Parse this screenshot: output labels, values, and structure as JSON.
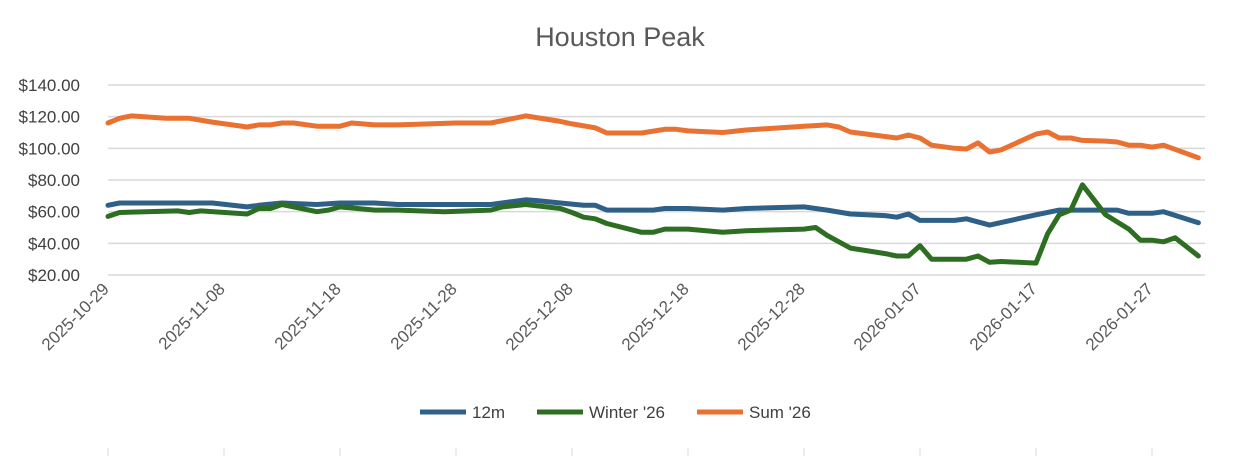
{
  "chart_data": {
    "type": "line",
    "title": "Houston Peak",
    "xlabel": "",
    "ylabel": "",
    "ylim": [
      20,
      140
    ],
    "yticks": [
      "$20.00",
      "$40.00",
      "$60.00",
      "$80.00",
      "$100.00",
      "$120.00",
      "$140.00"
    ],
    "ytick_values": [
      20,
      40,
      60,
      80,
      100,
      120,
      140
    ],
    "xlim": [
      "2025-10-29",
      "2026-01-31"
    ],
    "xticks": [
      "2025-10-29",
      "2025-11-08",
      "2025-11-18",
      "2025-11-28",
      "2025-12-08",
      "2025-12-18",
      "2025-12-28",
      "2026-01-07",
      "2026-01-17",
      "2026-01-27"
    ],
    "grid": true,
    "legend_position": "bottom",
    "series": [
      {
        "name": "12m",
        "color": "#2E6088",
        "points": [
          [
            "2025-10-29",
            64
          ],
          [
            "2025-10-30",
            65.5
          ],
          [
            "2025-11-07",
            65.5
          ],
          [
            "2025-11-10",
            63
          ],
          [
            "2025-11-11",
            64
          ],
          [
            "2025-11-13",
            65.5
          ],
          [
            "2025-11-16",
            64.5
          ],
          [
            "2025-11-18",
            65.5
          ],
          [
            "2025-11-21",
            65.5
          ],
          [
            "2025-11-23",
            64.5
          ],
          [
            "2025-12-01",
            64.5
          ],
          [
            "2025-12-03",
            66.5
          ],
          [
            "2025-12-04",
            67.5
          ],
          [
            "2025-12-05",
            67
          ],
          [
            "2025-12-07",
            65.5
          ],
          [
            "2025-12-09",
            64
          ],
          [
            "2025-12-10",
            64
          ],
          [
            "2025-12-11",
            61
          ],
          [
            "2025-12-15",
            61
          ],
          [
            "2025-12-16",
            62
          ],
          [
            "2025-12-18",
            62
          ],
          [
            "2025-12-21",
            61
          ],
          [
            "2025-12-23",
            62
          ],
          [
            "2025-12-28",
            63
          ],
          [
            "2025-12-30",
            61
          ],
          [
            "2026-01-01",
            58.5
          ],
          [
            "2026-01-04",
            57.5
          ],
          [
            "2026-01-05",
            56.5
          ],
          [
            "2026-01-06",
            58.5
          ],
          [
            "2026-01-07",
            54.5
          ],
          [
            "2026-01-10",
            54.5
          ],
          [
            "2026-01-11",
            55.5
          ],
          [
            "2026-01-13",
            51.5
          ],
          [
            "2026-01-17",
            58
          ],
          [
            "2026-01-19",
            61
          ],
          [
            "2026-01-23",
            61
          ],
          [
            "2026-01-24",
            61
          ],
          [
            "2026-01-25",
            59
          ],
          [
            "2026-01-27",
            59
          ],
          [
            "2026-01-28",
            60
          ],
          [
            "2026-01-31",
            53
          ]
        ]
      },
      {
        "name": "Winter '26",
        "color": "#2D6E23",
        "points": [
          [
            "2025-10-29",
            57
          ],
          [
            "2025-10-30",
            59.5
          ],
          [
            "2025-11-04",
            60.5
          ],
          [
            "2025-11-05",
            59.5
          ],
          [
            "2025-11-06",
            60.5
          ],
          [
            "2025-11-10",
            58.5
          ],
          [
            "2025-11-11",
            62
          ],
          [
            "2025-11-12",
            62
          ],
          [
            "2025-11-13",
            64.5
          ],
          [
            "2025-11-16",
            60
          ],
          [
            "2025-11-17",
            61
          ],
          [
            "2025-11-18",
            63
          ],
          [
            "2025-11-21",
            61
          ],
          [
            "2025-11-23",
            61
          ],
          [
            "2025-11-27",
            60
          ],
          [
            "2025-12-01",
            61
          ],
          [
            "2025-12-02",
            63
          ],
          [
            "2025-12-04",
            64.5
          ],
          [
            "2025-12-07",
            62
          ],
          [
            "2025-12-08",
            59.5
          ],
          [
            "2025-12-09",
            56.5
          ],
          [
            "2025-12-10",
            55.5
          ],
          [
            "2025-12-11",
            52.5
          ],
          [
            "2025-12-14",
            47
          ],
          [
            "2025-12-15",
            47
          ],
          [
            "2025-12-16",
            49
          ],
          [
            "2025-12-18",
            49
          ],
          [
            "2025-12-21",
            47
          ],
          [
            "2025-12-23",
            48
          ],
          [
            "2025-12-28",
            49
          ],
          [
            "2025-12-29",
            50
          ],
          [
            "2025-12-30",
            45
          ],
          [
            "2026-01-01",
            37
          ],
          [
            "2026-01-04",
            33.5
          ],
          [
            "2026-01-05",
            32
          ],
          [
            "2026-01-06",
            32
          ],
          [
            "2026-01-07",
            38.5
          ],
          [
            "2026-01-08",
            30
          ],
          [
            "2026-01-10",
            30
          ],
          [
            "2026-01-11",
            30
          ],
          [
            "2026-01-12",
            32
          ],
          [
            "2026-01-13",
            28
          ],
          [
            "2026-01-14",
            28.5
          ],
          [
            "2026-01-17",
            27.5
          ],
          [
            "2026-01-18",
            46
          ],
          [
            "2026-01-19",
            58
          ],
          [
            "2026-01-20",
            61
          ],
          [
            "2026-01-21",
            77
          ],
          [
            "2026-01-23",
            58
          ],
          [
            "2026-01-25",
            49
          ],
          [
            "2026-01-26",
            42
          ],
          [
            "2026-01-27",
            42
          ],
          [
            "2026-01-28",
            41
          ],
          [
            "2026-01-29",
            43.5
          ],
          [
            "2026-01-31",
            32
          ]
        ]
      },
      {
        "name": "Sum '26",
        "color": "#E97132",
        "points": [
          [
            "2025-10-29",
            116
          ],
          [
            "2025-10-30",
            119
          ],
          [
            "2025-10-31",
            120.5
          ],
          [
            "2025-11-03",
            119
          ],
          [
            "2025-11-05",
            119
          ],
          [
            "2025-11-07",
            116.6
          ],
          [
            "2025-11-10",
            113.5
          ],
          [
            "2025-11-11",
            114.8
          ],
          [
            "2025-11-12",
            114.8
          ],
          [
            "2025-11-13",
            116
          ],
          [
            "2025-11-14",
            116
          ],
          [
            "2025-11-16",
            114
          ],
          [
            "2025-11-18",
            114
          ],
          [
            "2025-11-19",
            116
          ],
          [
            "2025-11-21",
            114.8
          ],
          [
            "2025-11-23",
            114.8
          ],
          [
            "2025-11-28",
            116
          ],
          [
            "2025-12-01",
            116
          ],
          [
            "2025-12-04",
            120.5
          ],
          [
            "2025-12-07",
            117
          ],
          [
            "2025-12-08",
            115.4
          ],
          [
            "2025-12-10",
            113
          ],
          [
            "2025-12-11",
            109.7
          ],
          [
            "2025-12-14",
            109.7
          ],
          [
            "2025-12-16",
            112
          ],
          [
            "2025-12-17",
            112
          ],
          [
            "2025-12-18",
            111
          ],
          [
            "2025-12-21",
            110
          ],
          [
            "2025-12-23",
            111.6
          ],
          [
            "2025-12-28",
            114
          ],
          [
            "2025-12-30",
            114.8
          ],
          [
            "2025-12-31",
            113.5
          ],
          [
            "2026-01-01",
            110.3
          ],
          [
            "2026-01-03",
            108.4
          ],
          [
            "2026-01-05",
            106.5
          ],
          [
            "2026-01-06",
            108.4
          ],
          [
            "2026-01-07",
            106.5
          ],
          [
            "2026-01-08",
            102
          ],
          [
            "2026-01-10",
            100
          ],
          [
            "2026-01-11",
            99.6
          ],
          [
            "2026-01-12",
            103.4
          ],
          [
            "2026-01-13",
            97.7
          ],
          [
            "2026-01-14",
            99
          ],
          [
            "2026-01-17",
            109
          ],
          [
            "2026-01-18",
            110.3
          ],
          [
            "2026-01-19",
            106.5
          ],
          [
            "2026-01-20",
            106.5
          ],
          [
            "2026-01-21",
            105
          ],
          [
            "2026-01-23",
            104.6
          ],
          [
            "2026-01-24",
            104
          ],
          [
            "2026-01-25",
            102
          ],
          [
            "2026-01-26",
            102
          ],
          [
            "2026-01-27",
            100.8
          ],
          [
            "2026-01-28",
            102
          ],
          [
            "2026-01-31",
            94
          ]
        ]
      }
    ]
  }
}
